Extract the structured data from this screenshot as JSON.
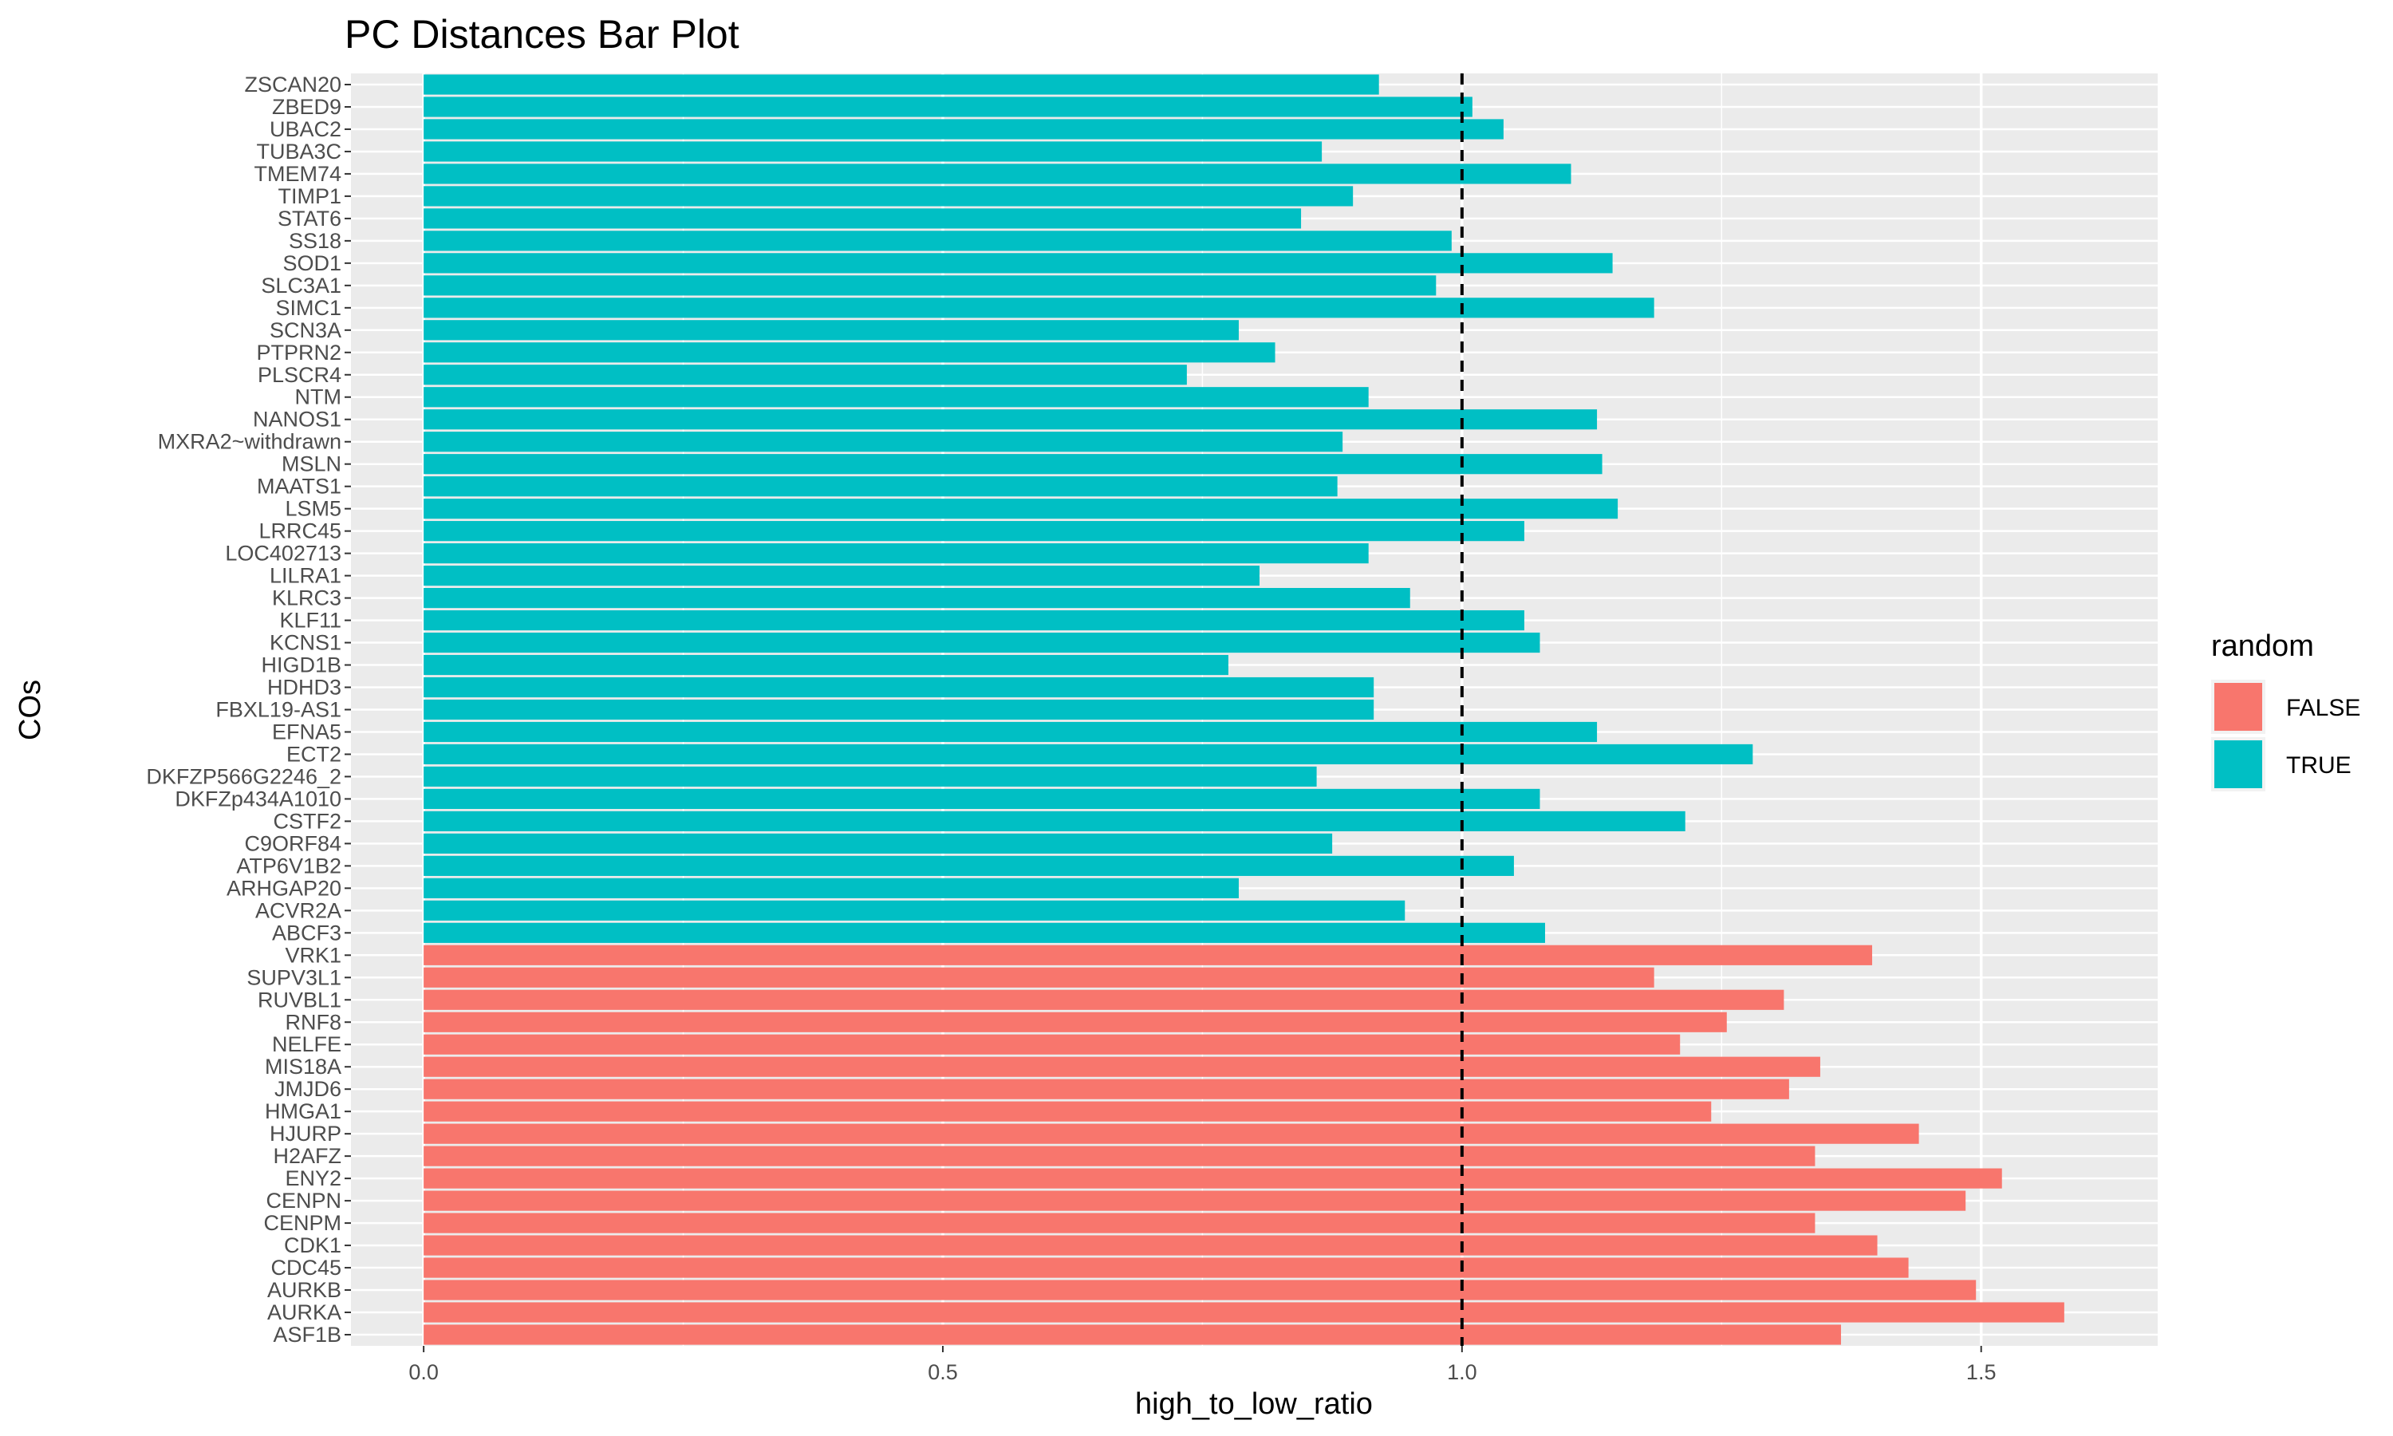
{
  "chart_data": {
    "type": "bar",
    "orientation": "horizontal",
    "title": "PC Distances Bar Plot",
    "xlabel": "high_to_low_ratio",
    "ylabel": "COs",
    "xlim": [
      -0.07,
      1.67
    ],
    "xticks": [
      0.0,
      0.5,
      1.0,
      1.5
    ],
    "xtick_labels": [
      "0.0",
      "0.5",
      "1.0",
      "1.5"
    ],
    "reference_line": {
      "x": 1.0,
      "style": "dashed",
      "color": "#000000"
    },
    "legend": {
      "title": "random",
      "position": "right",
      "entries": [
        {
          "label": "FALSE",
          "color": "#F8766D"
        },
        {
          "label": "TRUE",
          "color": "#00BFC4"
        }
      ]
    },
    "grid": true,
    "categories": [
      "ZSCAN20",
      "ZBED9",
      "UBAC2",
      "TUBA3C",
      "TMEM74",
      "TIMP1",
      "STAT6",
      "SS18",
      "SOD1",
      "SLC3A1",
      "SIMC1",
      "SCN3A",
      "PTPRN2",
      "PLSCR4",
      "NTM",
      "NANOS1",
      "MXRA2~withdrawn",
      "MSLN",
      "MAATS1",
      "LSM5",
      "LRRC45",
      "LOC402713",
      "LILRA1",
      "KLRC3",
      "KLF11",
      "KCNS1",
      "HIGD1B",
      "HDHD3",
      "FBXL19-AS1",
      "EFNA5",
      "ECT2",
      "DKFZP566G2246_2",
      "DKFZp434A1010",
      "CSTF2",
      "C9ORF84",
      "ATP6V1B2",
      "ARHGAP20",
      "ACVR2A",
      "ABCF3",
      "VRK1",
      "SUPV3L1",
      "RUVBL1",
      "RNF8",
      "NELFE",
      "MIS18A",
      "JMJD6",
      "HMGA1",
      "HJURP",
      "H2AFZ",
      "ENY2",
      "CENPN",
      "CENPM",
      "CDK1",
      "CDC45",
      "AURKB",
      "AURKA",
      "ASF1B"
    ],
    "values": [
      0.92,
      1.01,
      1.04,
      0.865,
      1.105,
      0.895,
      0.845,
      0.99,
      1.145,
      0.975,
      1.185,
      0.785,
      0.82,
      0.735,
      0.91,
      1.13,
      0.885,
      1.135,
      0.88,
      1.15,
      1.06,
      0.91,
      0.805,
      0.95,
      1.06,
      1.075,
      0.775,
      0.915,
      0.915,
      1.13,
      1.28,
      0.86,
      1.075,
      1.215,
      0.875,
      1.05,
      0.785,
      0.945,
      1.08,
      1.395,
      1.185,
      1.31,
      1.255,
      1.21,
      1.345,
      1.315,
      1.24,
      1.44,
      1.34,
      1.52,
      1.485,
      1.34,
      1.4,
      1.43,
      1.495,
      1.58,
      1.365
    ],
    "random": [
      "TRUE",
      "TRUE",
      "TRUE",
      "TRUE",
      "TRUE",
      "TRUE",
      "TRUE",
      "TRUE",
      "TRUE",
      "TRUE",
      "TRUE",
      "TRUE",
      "TRUE",
      "TRUE",
      "TRUE",
      "TRUE",
      "TRUE",
      "TRUE",
      "TRUE",
      "TRUE",
      "TRUE",
      "TRUE",
      "TRUE",
      "TRUE",
      "TRUE",
      "TRUE",
      "TRUE",
      "TRUE",
      "TRUE",
      "TRUE",
      "TRUE",
      "TRUE",
      "TRUE",
      "TRUE",
      "TRUE",
      "TRUE",
      "TRUE",
      "TRUE",
      "TRUE",
      "FALSE",
      "FALSE",
      "FALSE",
      "FALSE",
      "FALSE",
      "FALSE",
      "FALSE",
      "FALSE",
      "FALSE",
      "FALSE",
      "FALSE",
      "FALSE",
      "FALSE",
      "FALSE",
      "FALSE",
      "FALSE",
      "FALSE",
      "FALSE"
    ],
    "panel_background": "#EBEBEB"
  }
}
